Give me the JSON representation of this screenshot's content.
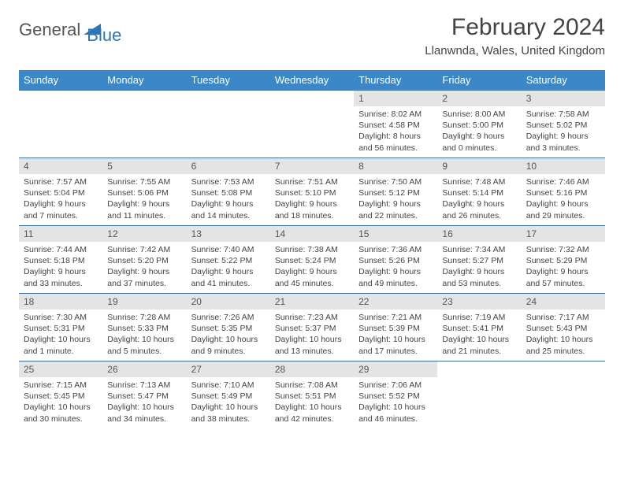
{
  "logo": {
    "text1": "General",
    "text2": "Blue"
  },
  "header": {
    "month": "February 2024",
    "location": "Llanwnda, Wales, United Kingdom"
  },
  "colors": {
    "header_bg": "#3b87c8",
    "row_border": "#3b6f9a",
    "daynum_bg": "#e4e4e4",
    "logo_blue": "#2a76b8"
  },
  "weekdays": [
    "Sunday",
    "Monday",
    "Tuesday",
    "Wednesday",
    "Thursday",
    "Friday",
    "Saturday"
  ],
  "weeks": [
    [
      {
        "empty": true
      },
      {
        "empty": true
      },
      {
        "empty": true
      },
      {
        "empty": true
      },
      {
        "n": "1",
        "sunrise": "Sunrise: 8:02 AM",
        "sunset": "Sunset: 4:58 PM",
        "day1": "Daylight: 8 hours",
        "day2": "and 56 minutes."
      },
      {
        "n": "2",
        "sunrise": "Sunrise: 8:00 AM",
        "sunset": "Sunset: 5:00 PM",
        "day1": "Daylight: 9 hours",
        "day2": "and 0 minutes."
      },
      {
        "n": "3",
        "sunrise": "Sunrise: 7:58 AM",
        "sunset": "Sunset: 5:02 PM",
        "day1": "Daylight: 9 hours",
        "day2": "and 3 minutes."
      }
    ],
    [
      {
        "n": "4",
        "sunrise": "Sunrise: 7:57 AM",
        "sunset": "Sunset: 5:04 PM",
        "day1": "Daylight: 9 hours",
        "day2": "and 7 minutes."
      },
      {
        "n": "5",
        "sunrise": "Sunrise: 7:55 AM",
        "sunset": "Sunset: 5:06 PM",
        "day1": "Daylight: 9 hours",
        "day2": "and 11 minutes."
      },
      {
        "n": "6",
        "sunrise": "Sunrise: 7:53 AM",
        "sunset": "Sunset: 5:08 PM",
        "day1": "Daylight: 9 hours",
        "day2": "and 14 minutes."
      },
      {
        "n": "7",
        "sunrise": "Sunrise: 7:51 AM",
        "sunset": "Sunset: 5:10 PM",
        "day1": "Daylight: 9 hours",
        "day2": "and 18 minutes."
      },
      {
        "n": "8",
        "sunrise": "Sunrise: 7:50 AM",
        "sunset": "Sunset: 5:12 PM",
        "day1": "Daylight: 9 hours",
        "day2": "and 22 minutes."
      },
      {
        "n": "9",
        "sunrise": "Sunrise: 7:48 AM",
        "sunset": "Sunset: 5:14 PM",
        "day1": "Daylight: 9 hours",
        "day2": "and 26 minutes."
      },
      {
        "n": "10",
        "sunrise": "Sunrise: 7:46 AM",
        "sunset": "Sunset: 5:16 PM",
        "day1": "Daylight: 9 hours",
        "day2": "and 29 minutes."
      }
    ],
    [
      {
        "n": "11",
        "sunrise": "Sunrise: 7:44 AM",
        "sunset": "Sunset: 5:18 PM",
        "day1": "Daylight: 9 hours",
        "day2": "and 33 minutes."
      },
      {
        "n": "12",
        "sunrise": "Sunrise: 7:42 AM",
        "sunset": "Sunset: 5:20 PM",
        "day1": "Daylight: 9 hours",
        "day2": "and 37 minutes."
      },
      {
        "n": "13",
        "sunrise": "Sunrise: 7:40 AM",
        "sunset": "Sunset: 5:22 PM",
        "day1": "Daylight: 9 hours",
        "day2": "and 41 minutes."
      },
      {
        "n": "14",
        "sunrise": "Sunrise: 7:38 AM",
        "sunset": "Sunset: 5:24 PM",
        "day1": "Daylight: 9 hours",
        "day2": "and 45 minutes."
      },
      {
        "n": "15",
        "sunrise": "Sunrise: 7:36 AM",
        "sunset": "Sunset: 5:26 PM",
        "day1": "Daylight: 9 hours",
        "day2": "and 49 minutes."
      },
      {
        "n": "16",
        "sunrise": "Sunrise: 7:34 AM",
        "sunset": "Sunset: 5:27 PM",
        "day1": "Daylight: 9 hours",
        "day2": "and 53 minutes."
      },
      {
        "n": "17",
        "sunrise": "Sunrise: 7:32 AM",
        "sunset": "Sunset: 5:29 PM",
        "day1": "Daylight: 9 hours",
        "day2": "and 57 minutes."
      }
    ],
    [
      {
        "n": "18",
        "sunrise": "Sunrise: 7:30 AM",
        "sunset": "Sunset: 5:31 PM",
        "day1": "Daylight: 10 hours",
        "day2": "and 1 minute."
      },
      {
        "n": "19",
        "sunrise": "Sunrise: 7:28 AM",
        "sunset": "Sunset: 5:33 PM",
        "day1": "Daylight: 10 hours",
        "day2": "and 5 minutes."
      },
      {
        "n": "20",
        "sunrise": "Sunrise: 7:26 AM",
        "sunset": "Sunset: 5:35 PM",
        "day1": "Daylight: 10 hours",
        "day2": "and 9 minutes."
      },
      {
        "n": "21",
        "sunrise": "Sunrise: 7:23 AM",
        "sunset": "Sunset: 5:37 PM",
        "day1": "Daylight: 10 hours",
        "day2": "and 13 minutes."
      },
      {
        "n": "22",
        "sunrise": "Sunrise: 7:21 AM",
        "sunset": "Sunset: 5:39 PM",
        "day1": "Daylight: 10 hours",
        "day2": "and 17 minutes."
      },
      {
        "n": "23",
        "sunrise": "Sunrise: 7:19 AM",
        "sunset": "Sunset: 5:41 PM",
        "day1": "Daylight: 10 hours",
        "day2": "and 21 minutes."
      },
      {
        "n": "24",
        "sunrise": "Sunrise: 7:17 AM",
        "sunset": "Sunset: 5:43 PM",
        "day1": "Daylight: 10 hours",
        "day2": "and 25 minutes."
      }
    ],
    [
      {
        "n": "25",
        "sunrise": "Sunrise: 7:15 AM",
        "sunset": "Sunset: 5:45 PM",
        "day1": "Daylight: 10 hours",
        "day2": "and 30 minutes."
      },
      {
        "n": "26",
        "sunrise": "Sunrise: 7:13 AM",
        "sunset": "Sunset: 5:47 PM",
        "day1": "Daylight: 10 hours",
        "day2": "and 34 minutes."
      },
      {
        "n": "27",
        "sunrise": "Sunrise: 7:10 AM",
        "sunset": "Sunset: 5:49 PM",
        "day1": "Daylight: 10 hours",
        "day2": "and 38 minutes."
      },
      {
        "n": "28",
        "sunrise": "Sunrise: 7:08 AM",
        "sunset": "Sunset: 5:51 PM",
        "day1": "Daylight: 10 hours",
        "day2": "and 42 minutes."
      },
      {
        "n": "29",
        "sunrise": "Sunrise: 7:06 AM",
        "sunset": "Sunset: 5:52 PM",
        "day1": "Daylight: 10 hours",
        "day2": "and 46 minutes."
      },
      {
        "empty": true
      },
      {
        "empty": true
      }
    ]
  ]
}
